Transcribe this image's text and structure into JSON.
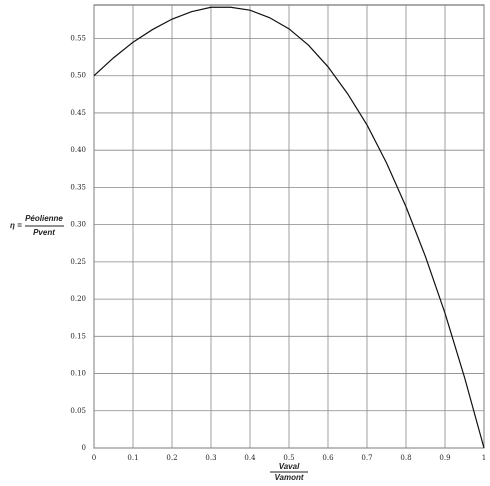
{
  "chart_data": {
    "type": "line",
    "y_label_prefix": "η =",
    "y_label_numerator": "Péolienne",
    "y_label_denominator": "Pvent",
    "x_label_numerator": "Vaval",
    "x_label_denominator": "Vamont",
    "x": [
      0,
      0.05,
      0.1,
      0.15,
      0.2,
      0.25,
      0.3,
      0.35,
      0.4,
      0.45,
      0.5,
      0.55,
      0.6,
      0.65,
      0.7,
      0.75,
      0.8,
      0.85,
      0.9,
      0.95,
      1
    ],
    "values": [
      0.5,
      0.524,
      0.545,
      0.562,
      0.576,
      0.586,
      0.592,
      0.592,
      0.588,
      0.578,
      0.563,
      0.541,
      0.512,
      0.476,
      0.434,
      0.383,
      0.324,
      0.257,
      0.181,
      0.095,
      0
    ],
    "color": "#111111",
    "xlim": [
      0,
      1
    ],
    "ylim": [
      0,
      0.595
    ],
    "xticks": [
      0,
      0.1,
      0.2,
      0.3,
      0.4,
      0.5,
      0.6,
      0.7,
      0.8,
      0.9,
      1
    ],
    "yticks": [
      0,
      0.05,
      {
        "value": 0.1,
        "label": "0.10"
      },
      0.15,
      {
        "value": 0.2,
        "label": "0.20"
      },
      0.25,
      {
        "value": 0.3,
        "label": "0.30"
      },
      0.35,
      {
        "value": 0.4,
        "label": "0.40"
      },
      0.45,
      {
        "value": 0.5,
        "label": "0.50"
      },
      0.55
    ],
    "grid": true
  }
}
